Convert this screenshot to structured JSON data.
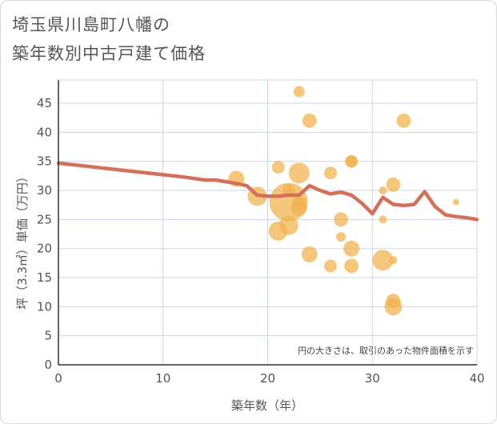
{
  "title": {
    "line1": "埼玉県川島町八幡の",
    "line2": "築年数別中古戸建て価格"
  },
  "note": "円の大きさは、取引のあった物件面積を示す",
  "colors": {
    "bubble": "#f0b24b",
    "line": "#d4705a",
    "grid": "#c9d6e8",
    "axis": "#333333"
  },
  "chart_data": {
    "type": "scatter",
    "xlabel": "築年数（年）",
    "ylabel": "坪（3.3㎡）単価（万円）",
    "xlim": [
      0,
      40
    ],
    "ylim": [
      0,
      49
    ],
    "xticks": [
      0,
      10,
      20,
      30,
      40
    ],
    "yticks": [
      0,
      5,
      10,
      15,
      20,
      25,
      30,
      35,
      40,
      45
    ],
    "grid": true,
    "points": [
      {
        "x": 23,
        "y": 47,
        "s": 7
      },
      {
        "x": 24,
        "y": 42,
        "s": 9
      },
      {
        "x": 33,
        "y": 42,
        "s": 9
      },
      {
        "x": 28,
        "y": 35,
        "s": 8
      },
      {
        "x": 28,
        "y": 35,
        "s": 7
      },
      {
        "x": 21,
        "y": 34,
        "s": 8
      },
      {
        "x": 26,
        "y": 33,
        "s": 8
      },
      {
        "x": 23,
        "y": 33,
        "s": 13
      },
      {
        "x": 17,
        "y": 32,
        "s": 10
      },
      {
        "x": 32,
        "y": 31,
        "s": 9
      },
      {
        "x": 22,
        "y": 30,
        "s": 8
      },
      {
        "x": 31,
        "y": 30,
        "s": 5
      },
      {
        "x": 19,
        "y": 29,
        "s": 12
      },
      {
        "x": 22,
        "y": 28,
        "s": 24
      },
      {
        "x": 23,
        "y": 28,
        "s": 8
      },
      {
        "x": 23,
        "y": 27,
        "s": 10
      },
      {
        "x": 38,
        "y": 28,
        "s": 4
      },
      {
        "x": 27,
        "y": 25,
        "s": 9
      },
      {
        "x": 31,
        "y": 25,
        "s": 5
      },
      {
        "x": 22,
        "y": 24,
        "s": 12
      },
      {
        "x": 21,
        "y": 23,
        "s": 12
      },
      {
        "x": 27,
        "y": 22,
        "s": 6
      },
      {
        "x": 28,
        "y": 20,
        "s": 10
      },
      {
        "x": 24,
        "y": 19,
        "s": 10
      },
      {
        "x": 31,
        "y": 18,
        "s": 13
      },
      {
        "x": 32,
        "y": 18,
        "s": 5
      },
      {
        "x": 26,
        "y": 17,
        "s": 8
      },
      {
        "x": 28,
        "y": 17,
        "s": 9
      },
      {
        "x": 32,
        "y": 11,
        "s": 9
      },
      {
        "x": 32,
        "y": 10,
        "s": 11
      }
    ],
    "trend": {
      "x": [
        0,
        2,
        4,
        6,
        8,
        10,
        12,
        14,
        15,
        16,
        17,
        18,
        19,
        20,
        21,
        22,
        23,
        24,
        25,
        26,
        27,
        28,
        29,
        30,
        31,
        32,
        33,
        34,
        35,
        36,
        37,
        38,
        39,
        40
      ],
      "y": [
        34.7,
        34.3,
        33.9,
        33.5,
        33.1,
        32.7,
        32.3,
        31.8,
        31.8,
        31.5,
        31.2,
        30.8,
        29.2,
        29.0,
        29.0,
        29.2,
        29.2,
        30.8,
        30.0,
        29.4,
        29.7,
        29.2,
        27.8,
        26.0,
        28.8,
        27.6,
        27.4,
        27.6,
        29.8,
        27.2,
        25.8,
        25.5,
        25.3,
        25.0
      ]
    }
  }
}
